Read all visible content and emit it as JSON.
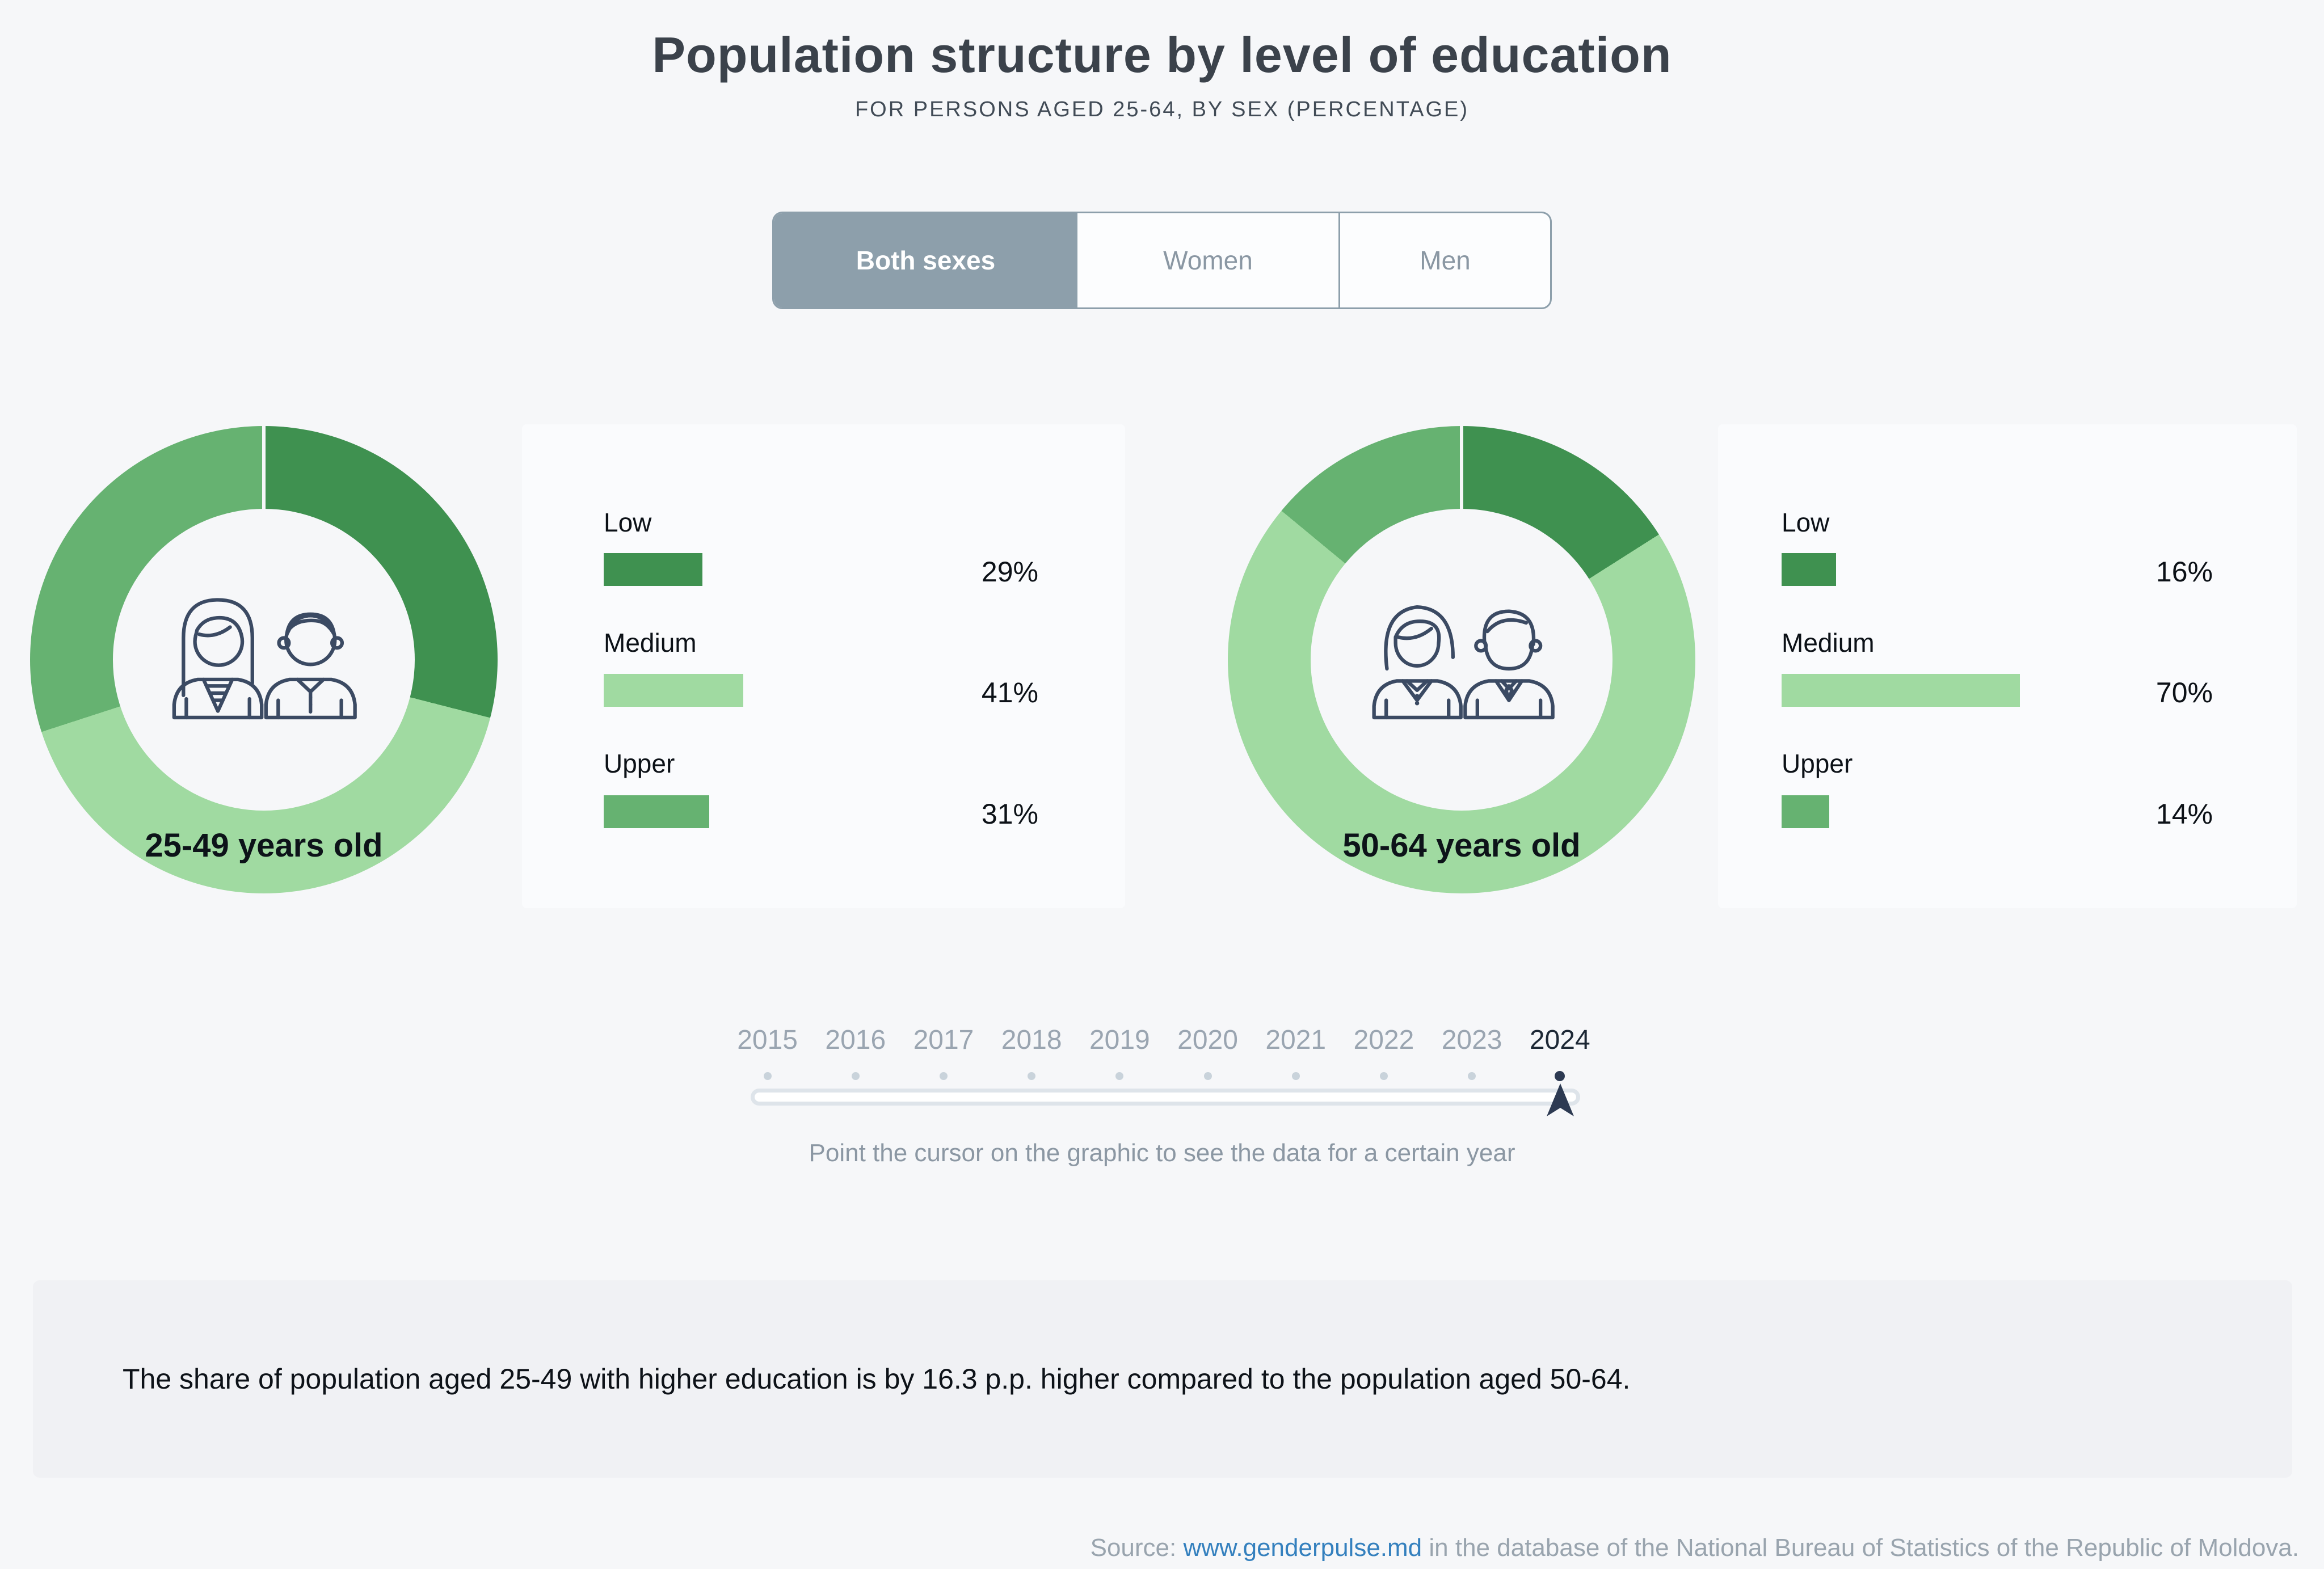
{
  "page": {
    "title": "Population structure by level of education",
    "subtitle": "FOR PERSONS AGED 25-64, BY SEX (PERCENTAGE)",
    "hint": "Point the cursor on the graphic to see the data for a certain year",
    "note": "The share of population aged 25-49 with higher education is by 16.3 p.p. higher compared to the population aged 50-64.",
    "source_prefix": "Source:",
    "source_link": "www.genderpulse.md",
    "source_suffix": "in the database of the National Bureau of Statistics of the Republic of Moldova."
  },
  "tabs": [
    {
      "label": "Both sexes",
      "active": true
    },
    {
      "label": "Women",
      "active": false
    },
    {
      "label": "Men",
      "active": false
    }
  ],
  "slider": {
    "years": [
      "2015",
      "2016",
      "2017",
      "2018",
      "2019",
      "2020",
      "2021",
      "2022",
      "2023",
      "2024"
    ],
    "selected": "2024"
  },
  "colors": {
    "levels": {
      "Low": "#3f9150",
      "Medium": "#a0daa1",
      "Upper": "#66b271"
    },
    "tab_active": "#8d9fab",
    "icon_stroke": "#3b4a63",
    "cursor": "#2d3a52",
    "link": "#3480be"
  },
  "chart_data": {
    "type": "pie",
    "subtype": "donut",
    "title": "Population structure by level of education",
    "unit": "%",
    "levels": [
      "Low",
      "Medium",
      "Upper"
    ],
    "year_shown": "2024",
    "groups": [
      {
        "label": "25-49 years old",
        "rows": [
          {
            "level": "Low",
            "value": 29,
            "display": "29%"
          },
          {
            "level": "Medium",
            "value": 41,
            "display": "41%"
          },
          {
            "level": "Upper",
            "value": 31,
            "display": "31%"
          }
        ]
      },
      {
        "label": "50-64 years old",
        "rows": [
          {
            "level": "Low",
            "value": 16,
            "display": "16%"
          },
          {
            "level": "Medium",
            "value": 70,
            "display": "70%"
          },
          {
            "level": "Upper",
            "value": 14,
            "display": "14%"
          }
        ]
      }
    ]
  }
}
